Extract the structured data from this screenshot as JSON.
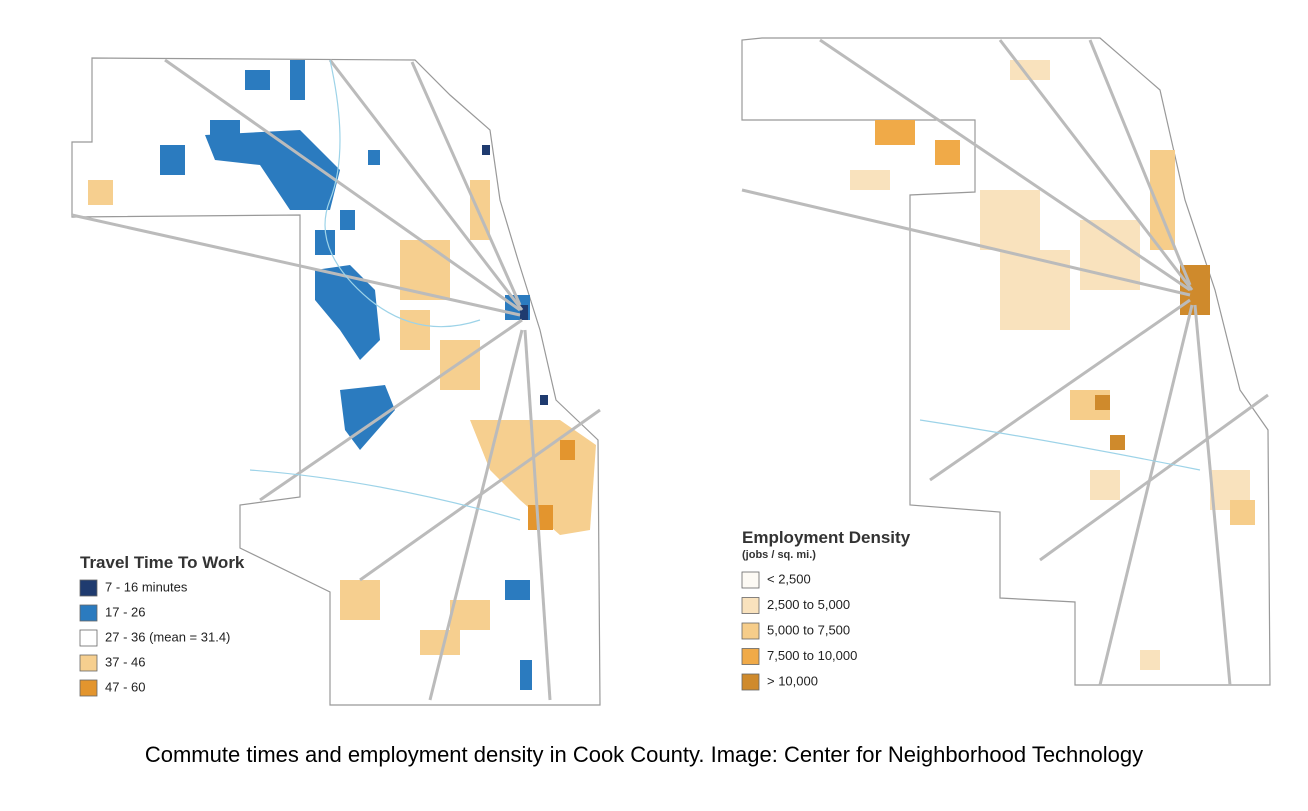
{
  "left_map": {
    "legend": {
      "title": "Travel Time To Work",
      "items": [
        {
          "label": "7 - 16 minutes",
          "color": "#1f3b6f"
        },
        {
          "label": "17 - 26",
          "color": "#2b7bbf"
        },
        {
          "label": "27 - 36 (mean = 31.4)",
          "color": "#ffffff"
        },
        {
          "label": "37 - 46",
          "color": "#f6cf8f"
        },
        {
          "label": "47 - 60",
          "color": "#e3952e"
        }
      ]
    }
  },
  "right_map": {
    "legend": {
      "title": "Employment Density",
      "subtitle": "(jobs / sq. mi.)",
      "items": [
        {
          "label": "< 2,500",
          "color": "#fdfaf4"
        },
        {
          "label": "2,500 to 5,000",
          "color": "#f9e2bd"
        },
        {
          "label": "5,000 to 7,500",
          "color": "#f6cd8a"
        },
        {
          "label": "7,500 to 10,000",
          "color": "#f0aa48"
        },
        {
          "label": "> 10,000",
          "color": "#cf8a2c"
        }
      ]
    }
  },
  "caption": "Commute times and employment density in Cook County. Image: Center for Neighborhood Technology"
}
